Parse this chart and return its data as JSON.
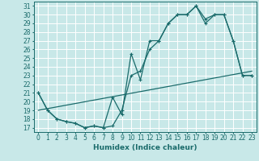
{
  "title": "",
  "xlabel": "Humidex (Indice chaleur)",
  "bg_color": "#c8e8e8",
  "grid_color": "#ffffff",
  "line_color": "#1a6b6b",
  "xlim": [
    -0.5,
    23.5
  ],
  "ylim": [
    16.5,
    31.5
  ],
  "xticks": [
    0,
    1,
    2,
    3,
    4,
    5,
    6,
    7,
    8,
    9,
    10,
    11,
    12,
    13,
    14,
    15,
    16,
    17,
    18,
    19,
    20,
    21,
    22,
    23
  ],
  "yticks": [
    17,
    18,
    19,
    20,
    21,
    22,
    23,
    24,
    25,
    26,
    27,
    28,
    29,
    30,
    31
  ],
  "line1_x": [
    0,
    1,
    2,
    3,
    4,
    5,
    6,
    7,
    8,
    9,
    10,
    11,
    12,
    13,
    14,
    15,
    16,
    17,
    18,
    19,
    20,
    21,
    22,
    23
  ],
  "line1_y": [
    21,
    19,
    18,
    17.7,
    17.5,
    17,
    17.2,
    17,
    20.5,
    18.5,
    25.5,
    22.5,
    27,
    27,
    29,
    30,
    30,
    31,
    29,
    30,
    30,
    27,
    23,
    23
  ],
  "line2_x": [
    0,
    1,
    2,
    3,
    4,
    5,
    6,
    7,
    8,
    9,
    10,
    11,
    12,
    13,
    14,
    15,
    16,
    17,
    18,
    19,
    20,
    21,
    22,
    23
  ],
  "line2_y": [
    21,
    19,
    18,
    17.7,
    17.5,
    17,
    17.2,
    17,
    17.2,
    19,
    23,
    23.5,
    26,
    27,
    29,
    30,
    30,
    31,
    29.5,
    30,
    30,
    27,
    23,
    23
  ],
  "line3_x": [
    0,
    23
  ],
  "line3_y": [
    19,
    23.5
  ],
  "tick_fontsize": 5.5,
  "label_fontsize": 6.5
}
